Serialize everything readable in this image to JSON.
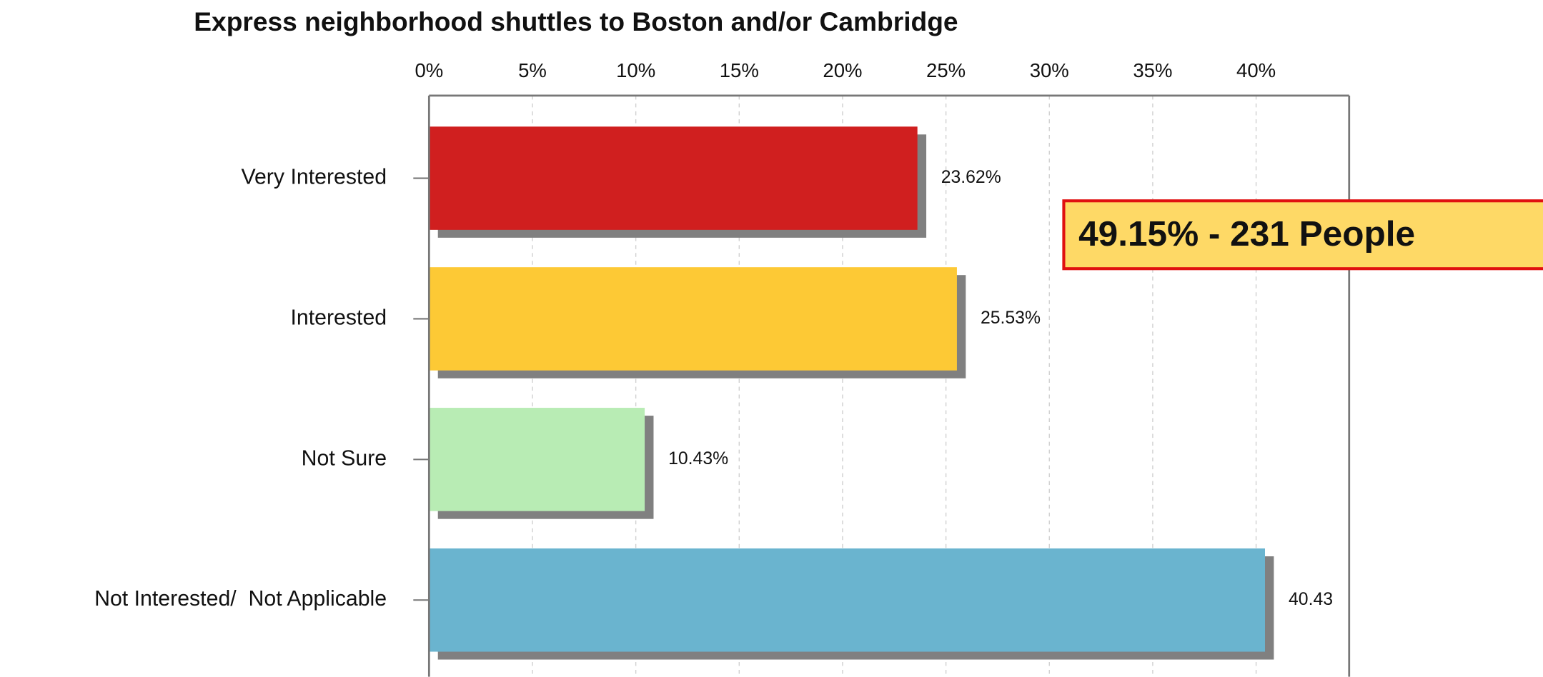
{
  "chart_data": {
    "type": "bar",
    "orientation": "horizontal",
    "title": "Express neighborhood shuttles to Boston and/or Cambridge",
    "categories": [
      "Very Interested",
      "Interested",
      "Not Sure",
      "Not Interested/  Not Applicable"
    ],
    "values": [
      23.62,
      25.53,
      10.43,
      40.43
    ],
    "value_labels": [
      "23.62%",
      "25.53%",
      "10.43%",
      "40.43"
    ],
    "colors": [
      "#d01f1f",
      "#fdc935",
      "#b8ecb4",
      "#6ab4cf"
    ],
    "xlim": [
      0,
      44.5
    ],
    "xticks": [
      {
        "value": 0,
        "label": "0%"
      },
      {
        "value": 5,
        "label": "5%"
      },
      {
        "value": 10,
        "label": "10%"
      },
      {
        "value": 15,
        "label": "15%"
      },
      {
        "value": 20,
        "label": "20%"
      },
      {
        "value": 25,
        "label": "25%"
      },
      {
        "value": 30,
        "label": "30%"
      },
      {
        "value": 35,
        "label": "35%"
      },
      {
        "value": 40,
        "label": "40%"
      }
    ],
    "grid": true,
    "annotation": "49.15% - 231 People"
  }
}
